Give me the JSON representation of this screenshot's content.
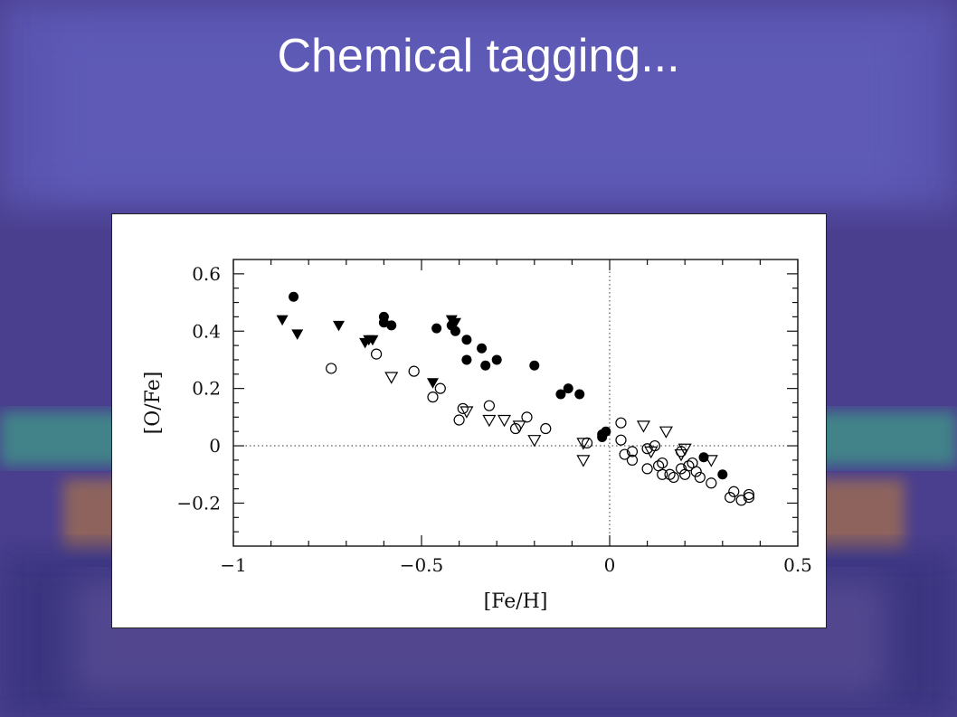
{
  "slide": {
    "title": "Chemical tagging..."
  },
  "colors": {
    "background": "#4a3f8f",
    "panel": "#ffffff",
    "marker": "#000000"
  },
  "chart_data": {
    "type": "scatter",
    "xlabel": "[Fe/H]",
    "ylabel": "[O/Fe]",
    "xlim": [
      -1,
      0.5
    ],
    "ylim": [
      -0.35,
      0.65
    ],
    "xticks": [
      -1,
      -0.5,
      0,
      0.5
    ],
    "xtick_labels": [
      "−1",
      "−0.5",
      "0",
      "0.5"
    ],
    "yticks": [
      -0.2,
      0,
      0.2,
      0.4,
      0.6
    ],
    "ytick_labels": [
      "−0.2",
      "0",
      "0.2",
      "0.4",
      "0.6"
    ],
    "reference_lines": [
      {
        "axis": "x",
        "value": 0,
        "style": "dotted"
      },
      {
        "axis": "y",
        "value": 0,
        "style": "dotted"
      }
    ],
    "grid": false,
    "series": [
      {
        "marker": "filled-circle",
        "points": [
          [
            -0.84,
            0.52
          ],
          [
            -0.6,
            0.45
          ],
          [
            -0.6,
            0.43
          ],
          [
            -0.58,
            0.42
          ],
          [
            -0.46,
            0.41
          ],
          [
            -0.42,
            0.42
          ],
          [
            -0.41,
            0.4
          ],
          [
            -0.38,
            0.37
          ],
          [
            -0.34,
            0.34
          ],
          [
            -0.38,
            0.3
          ],
          [
            -0.33,
            0.28
          ],
          [
            -0.3,
            0.3
          ],
          [
            -0.2,
            0.28
          ],
          [
            -0.13,
            0.18
          ],
          [
            -0.11,
            0.2
          ],
          [
            -0.08,
            0.18
          ],
          [
            -0.02,
            0.04
          ],
          [
            -0.01,
            0.05
          ],
          [
            -0.02,
            0.03
          ],
          [
            0.25,
            -0.04
          ],
          [
            0.3,
            -0.1
          ]
        ]
      },
      {
        "marker": "filled-triangle-down",
        "points": [
          [
            -0.87,
            0.44
          ],
          [
            -0.83,
            0.39
          ],
          [
            -0.72,
            0.42
          ],
          [
            -0.65,
            0.36
          ],
          [
            -0.64,
            0.37
          ],
          [
            -0.63,
            0.37
          ],
          [
            -0.47,
            0.22
          ],
          [
            -0.42,
            0.44
          ],
          [
            -0.41,
            0.43
          ]
        ]
      },
      {
        "marker": "open-circle",
        "points": [
          [
            -0.74,
            0.27
          ],
          [
            -0.62,
            0.32
          ],
          [
            -0.52,
            0.26
          ],
          [
            -0.47,
            0.17
          ],
          [
            -0.45,
            0.2
          ],
          [
            -0.4,
            0.09
          ],
          [
            -0.39,
            0.13
          ],
          [
            -0.32,
            0.14
          ],
          [
            -0.25,
            0.06
          ],
          [
            -0.22,
            0.1
          ],
          [
            -0.17,
            0.06
          ],
          [
            -0.06,
            0.01
          ],
          [
            0.03,
            0.08
          ],
          [
            0.03,
            0.02
          ],
          [
            0.04,
            -0.03
          ],
          [
            0.06,
            -0.02
          ],
          [
            0.06,
            -0.05
          ],
          [
            0.1,
            -0.01
          ],
          [
            0.1,
            -0.08
          ],
          [
            0.12,
            0.0
          ],
          [
            0.13,
            -0.07
          ],
          [
            0.14,
            -0.06
          ],
          [
            0.14,
            -0.1
          ],
          [
            0.16,
            -0.1
          ],
          [
            0.17,
            -0.11
          ],
          [
            0.19,
            -0.08
          ],
          [
            0.19,
            -0.02
          ],
          [
            0.2,
            -0.1
          ],
          [
            0.21,
            -0.07
          ],
          [
            0.22,
            -0.06
          ],
          [
            0.23,
            -0.09
          ],
          [
            0.24,
            -0.11
          ],
          [
            0.27,
            -0.13
          ],
          [
            0.32,
            -0.18
          ],
          [
            0.33,
            -0.16
          ],
          [
            0.35,
            -0.19
          ],
          [
            0.37,
            -0.17
          ],
          [
            0.37,
            -0.18
          ]
        ]
      },
      {
        "marker": "open-triangle-down",
        "points": [
          [
            -0.58,
            0.24
          ],
          [
            -0.38,
            0.12
          ],
          [
            -0.32,
            0.09
          ],
          [
            -0.28,
            0.09
          ],
          [
            -0.24,
            0.07
          ],
          [
            -0.2,
            0.02
          ],
          [
            -0.07,
            0.01
          ],
          [
            -0.07,
            -0.05
          ],
          [
            0.09,
            0.07
          ],
          [
            0.11,
            -0.02
          ],
          [
            0.15,
            0.05
          ],
          [
            0.19,
            -0.03
          ],
          [
            0.2,
            -0.01
          ],
          [
            0.27,
            -0.05
          ]
        ]
      }
    ]
  }
}
